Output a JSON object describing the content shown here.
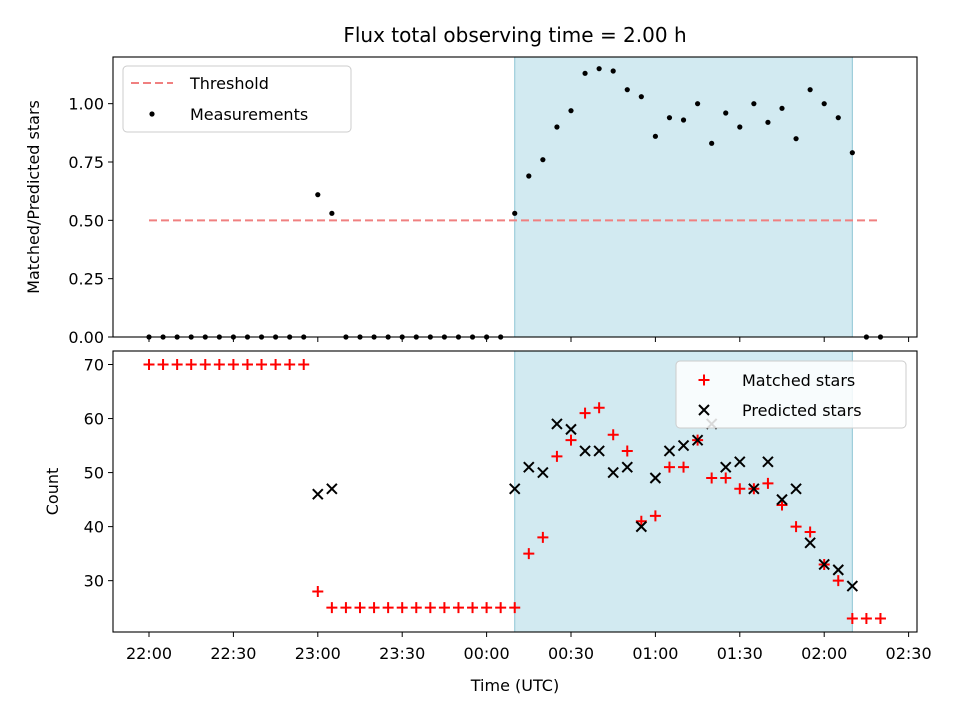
{
  "title": "Flux total observing time = 2.00 h",
  "colors": {
    "span": "#add8e6",
    "threshold": "#f08080",
    "measurement": "#000000",
    "matched": "#ff0000",
    "predicted": "#000000"
  },
  "chart_data": [
    {
      "type": "scatter",
      "ylabel": "Matched/Predicted stars",
      "xlabel": "",
      "ylim": [
        0,
        1.2
      ],
      "yticks": [
        0.0,
        0.25,
        0.5,
        0.75,
        1.0
      ],
      "ytick_labels": [
        "0.00",
        "0.25",
        "0.50",
        "0.75",
        "1.00"
      ],
      "grid": false,
      "legend_position": "upper-left",
      "shaded_span": {
        "start": "00:10",
        "end": "02:10"
      },
      "threshold": {
        "name": "Threshold",
        "value": 0.5,
        "x_start": "22:00",
        "x_end": "02:20"
      },
      "series": [
        {
          "name": "Measurements",
          "marker": "dot",
          "points": [
            [
              "22:00",
              0
            ],
            [
              "22:05",
              0
            ],
            [
              "22:10",
              0
            ],
            [
              "22:15",
              0
            ],
            [
              "22:20",
              0
            ],
            [
              "22:25",
              0
            ],
            [
              "22:30",
              0
            ],
            [
              "22:35",
              0
            ],
            [
              "22:40",
              0
            ],
            [
              "22:45",
              0
            ],
            [
              "22:50",
              0
            ],
            [
              "22:55",
              0
            ],
            [
              "23:00",
              0.61
            ],
            [
              "23:05",
              0.53
            ],
            [
              "23:10",
              0
            ],
            [
              "23:15",
              0
            ],
            [
              "23:20",
              0
            ],
            [
              "23:25",
              0
            ],
            [
              "23:30",
              0
            ],
            [
              "23:35",
              0
            ],
            [
              "23:40",
              0
            ],
            [
              "23:45",
              0
            ],
            [
              "23:50",
              0
            ],
            [
              "23:55",
              0
            ],
            [
              "00:00",
              0
            ],
            [
              "00:05",
              0
            ],
            [
              "00:10",
              0.53
            ],
            [
              "00:15",
              0.69
            ],
            [
              "00:20",
              0.76
            ],
            [
              "00:25",
              0.9
            ],
            [
              "00:30",
              0.97
            ],
            [
              "00:35",
              1.13
            ],
            [
              "00:40",
              1.15
            ],
            [
              "00:45",
              1.14
            ],
            [
              "00:50",
              1.06
            ],
            [
              "00:55",
              1.03
            ],
            [
              "01:00",
              0.86
            ],
            [
              "01:05",
              0.94
            ],
            [
              "01:10",
              0.93
            ],
            [
              "01:15",
              1.0
            ],
            [
              "01:20",
              0.83
            ],
            [
              "01:25",
              0.96
            ],
            [
              "01:30",
              0.9
            ],
            [
              "01:35",
              1.0
            ],
            [
              "01:40",
              0.92
            ],
            [
              "01:45",
              0.98
            ],
            [
              "01:50",
              0.85
            ],
            [
              "01:55",
              1.06
            ],
            [
              "02:00",
              1.0
            ],
            [
              "02:05",
              0.94
            ],
            [
              "02:10",
              0.79
            ],
            [
              "02:15",
              0
            ],
            [
              "02:20",
              0
            ]
          ]
        }
      ]
    },
    {
      "type": "scatter",
      "ylabel": "Count",
      "xlabel": "Time (UTC)",
      "ylim": [
        20.5,
        72.5
      ],
      "yticks": [
        30,
        40,
        50,
        60,
        70
      ],
      "ytick_labels": [
        "30",
        "40",
        "50",
        "60",
        "70"
      ],
      "xticks": [
        "22:00",
        "22:30",
        "23:00",
        "23:30",
        "00:00",
        "00:30",
        "01:00",
        "01:30",
        "02:00",
        "02:30"
      ],
      "grid": false,
      "legend_position": "upper-right",
      "shaded_span": {
        "start": "00:10",
        "end": "02:10"
      },
      "series": [
        {
          "name": "Matched stars",
          "marker": "plus",
          "points": [
            [
              "22:00",
              70
            ],
            [
              "22:05",
              70
            ],
            [
              "22:10",
              70
            ],
            [
              "22:15",
              70
            ],
            [
              "22:20",
              70
            ],
            [
              "22:25",
              70
            ],
            [
              "22:30",
              70
            ],
            [
              "22:35",
              70
            ],
            [
              "22:40",
              70
            ],
            [
              "22:45",
              70
            ],
            [
              "22:50",
              70
            ],
            [
              "22:55",
              70
            ],
            [
              "23:00",
              28
            ],
            [
              "23:05",
              25
            ],
            [
              "23:10",
              25
            ],
            [
              "23:15",
              25
            ],
            [
              "23:20",
              25
            ],
            [
              "23:25",
              25
            ],
            [
              "23:30",
              25
            ],
            [
              "23:35",
              25
            ],
            [
              "23:40",
              25
            ],
            [
              "23:45",
              25
            ],
            [
              "23:50",
              25
            ],
            [
              "23:55",
              25
            ],
            [
              "00:00",
              25
            ],
            [
              "00:05",
              25
            ],
            [
              "00:10",
              25
            ],
            [
              "00:15",
              35
            ],
            [
              "00:20",
              38
            ],
            [
              "00:25",
              53
            ],
            [
              "00:30",
              56
            ],
            [
              "00:35",
              61
            ],
            [
              "00:40",
              62
            ],
            [
              "00:45",
              57
            ],
            [
              "00:50",
              54
            ],
            [
              "00:55",
              41
            ],
            [
              "01:00",
              42
            ],
            [
              "01:05",
              51
            ],
            [
              "01:10",
              51
            ],
            [
              "01:15",
              56
            ],
            [
              "01:20",
              49
            ],
            [
              "01:25",
              49
            ],
            [
              "01:30",
              47
            ],
            [
              "01:35",
              47
            ],
            [
              "01:40",
              48
            ],
            [
              "01:45",
              44
            ],
            [
              "01:50",
              40
            ],
            [
              "01:55",
              39
            ],
            [
              "02:00",
              33
            ],
            [
              "02:05",
              30
            ],
            [
              "02:10",
              23
            ],
            [
              "02:15",
              23
            ],
            [
              "02:20",
              23
            ]
          ]
        },
        {
          "name": "Predicted stars",
          "marker": "x",
          "points": [
            [
              "23:00",
              46
            ],
            [
              "23:05",
              47
            ],
            [
              "00:10",
              47
            ],
            [
              "00:15",
              51
            ],
            [
              "00:20",
              50
            ],
            [
              "00:25",
              59
            ],
            [
              "00:30",
              58
            ],
            [
              "00:35",
              54
            ],
            [
              "00:40",
              54
            ],
            [
              "00:45",
              50
            ],
            [
              "00:50",
              51
            ],
            [
              "00:55",
              40
            ],
            [
              "01:00",
              49
            ],
            [
              "01:05",
              54
            ],
            [
              "01:10",
              55
            ],
            [
              "01:15",
              56
            ],
            [
              "01:20",
              59
            ],
            [
              "01:25",
              51
            ],
            [
              "01:30",
              52
            ],
            [
              "01:35",
              47
            ],
            [
              "01:40",
              52
            ],
            [
              "01:45",
              45
            ],
            [
              "01:50",
              47
            ],
            [
              "01:55",
              37
            ],
            [
              "02:00",
              33
            ],
            [
              "02:05",
              32
            ],
            [
              "02:10",
              29
            ]
          ]
        }
      ]
    }
  ]
}
